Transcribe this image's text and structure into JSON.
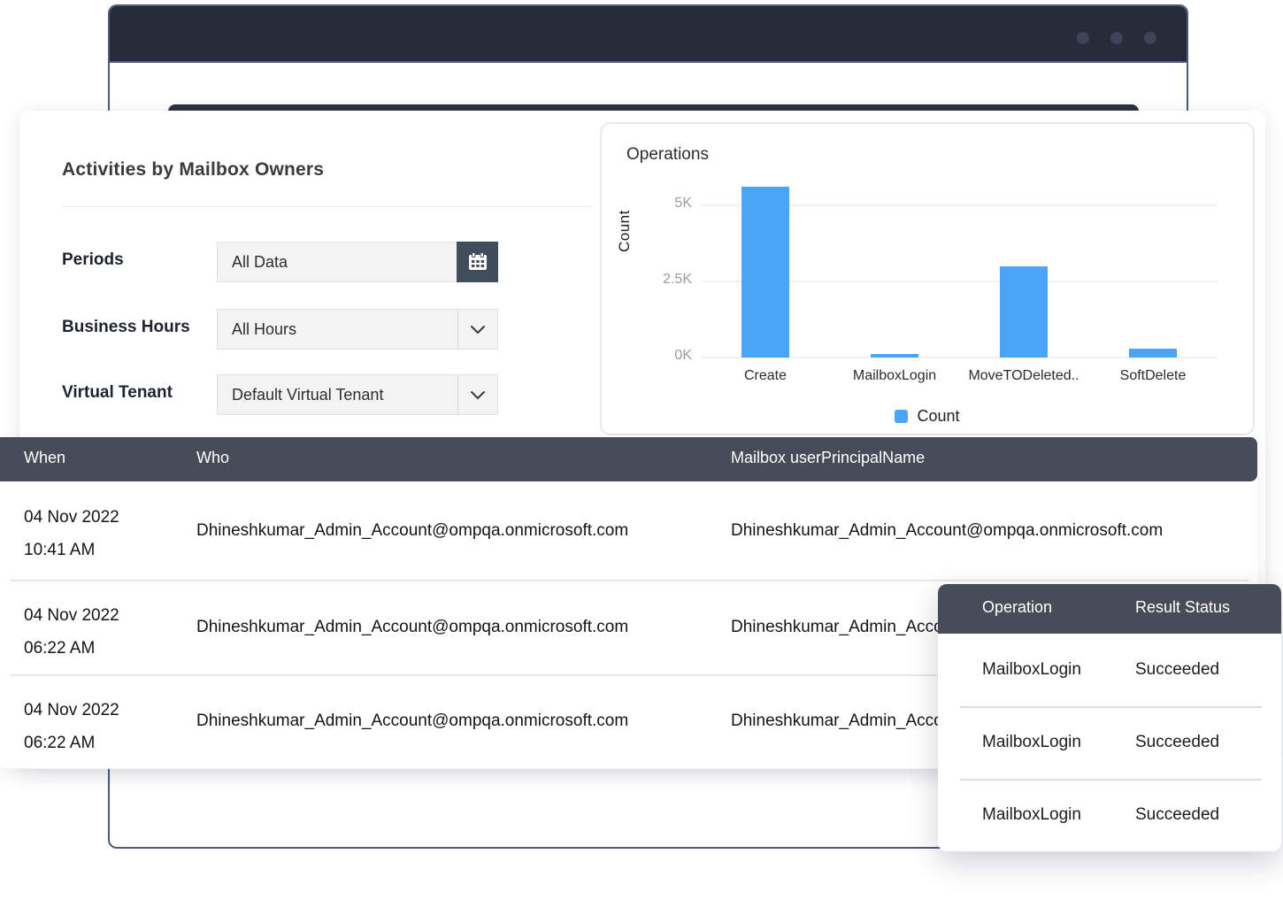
{
  "colors": {
    "accent_blue": "#4aa4f8",
    "dark_header": "#474c58",
    "titlebar": "#272c3a",
    "window_border": "#4e5a7e",
    "calendar_button": "#404e5c"
  },
  "filters_panel": {
    "title": "Activities by Mailbox Owners",
    "filters": [
      {
        "label": "Periods",
        "value": "All Data",
        "control": "date-picker"
      },
      {
        "label": "Business Hours",
        "value": "All Hours",
        "control": "dropdown"
      },
      {
        "label": "Virtual Tenant",
        "value": "Default Virtual Tenant",
        "control": "dropdown"
      }
    ]
  },
  "chart_data": {
    "type": "bar",
    "title": "Operations",
    "xlabel": "",
    "ylabel": "Count",
    "categories": [
      "Create",
      "MailboxLogin",
      "MoveTODeleted..",
      "SoftDelete"
    ],
    "values": [
      5600,
      120,
      3000,
      300
    ],
    "ylim": [
      0,
      6000
    ],
    "yticks": [
      0,
      2500,
      5000
    ],
    "ytick_labels": [
      "0K",
      "2.5K",
      "5K"
    ],
    "legend": [
      "Count"
    ],
    "legend_position": "bottom",
    "grid": true,
    "bar_color": "#4aa4f8"
  },
  "activity_table": {
    "columns": [
      "When",
      "Who",
      "Mailbox userPrincipalName"
    ],
    "rows": [
      {
        "date": "04 Nov 2022",
        "time": "10:41 AM",
        "who": "Dhineshkumar_Admin_Account@ompqa.onmicrosoft.com",
        "mailbox": "Dhineshkumar_Admin_Account@ompqa.onmicrosoft.com"
      },
      {
        "date": "04 Nov 2022",
        "time": "06:22 AM",
        "who": "Dhineshkumar_Admin_Account@ompqa.onmicrosoft.com",
        "mailbox": "Dhineshkumar_Admin_Account@ompqa.onmicrosoft.com"
      },
      {
        "date": "04 Nov 2022",
        "time": "06:22 AM",
        "who": "Dhineshkumar_Admin_Account@ompqa.onmicrosoft.com",
        "mailbox": "Dhineshkumar_Admin_Account@ompqa.onmicrosoft.com"
      }
    ]
  },
  "detail_popup": {
    "columns": [
      "Operation",
      "Result Status"
    ],
    "rows": [
      {
        "operation": "MailboxLogin",
        "status": "Succeeded"
      },
      {
        "operation": "MailboxLogin",
        "status": "Succeeded"
      },
      {
        "operation": "MailboxLogin",
        "status": "Succeeded"
      }
    ]
  }
}
